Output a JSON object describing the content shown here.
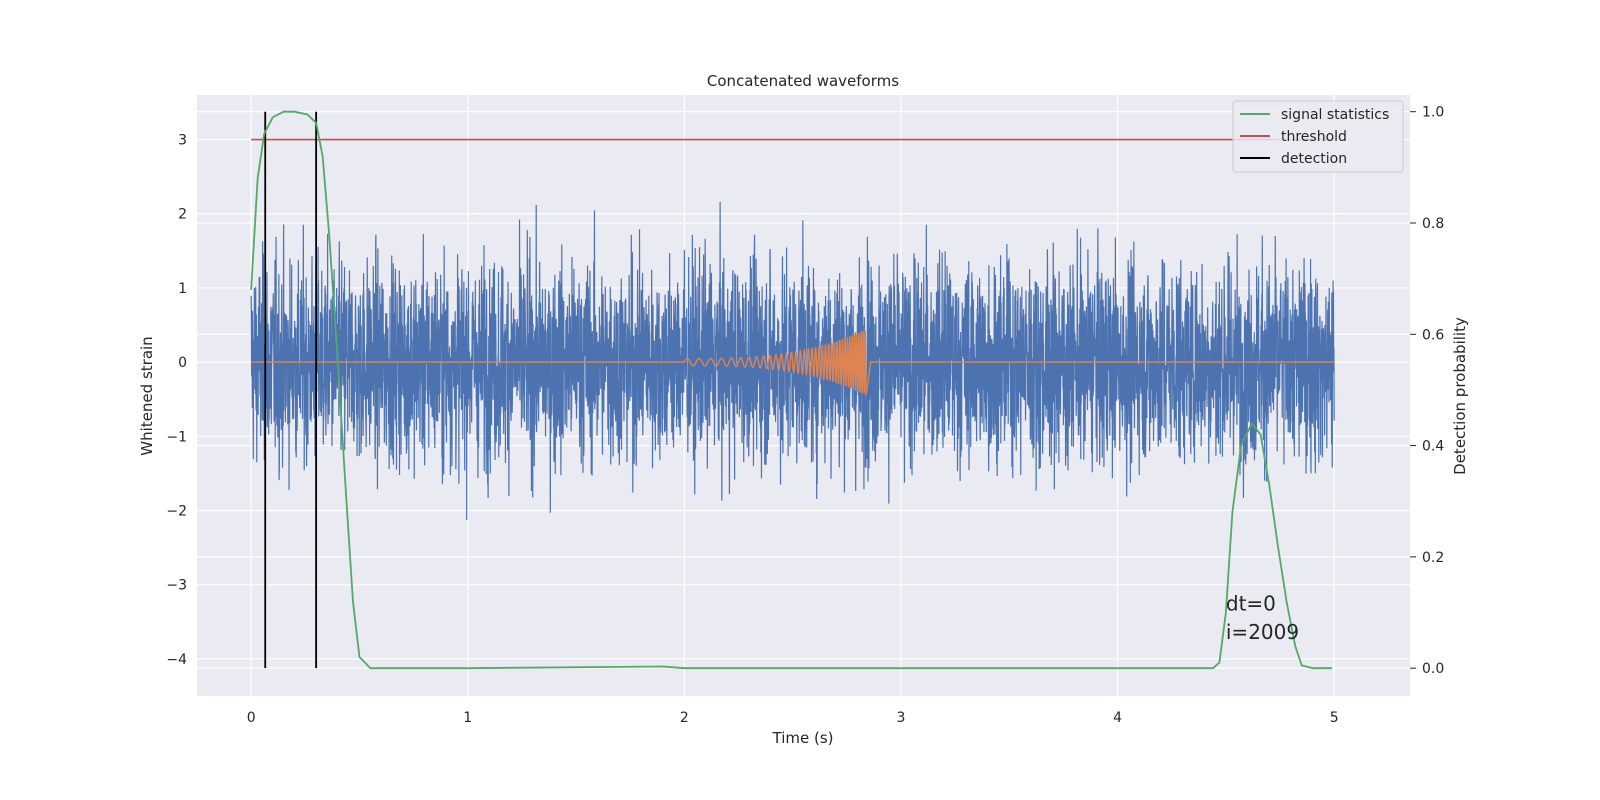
{
  "chart_data": {
    "type": "line",
    "title": "Concatenated waveforms",
    "xlabel": "Time (s)",
    "ylabel": "Whitened strain",
    "y2label": "Detection probability",
    "xlim": [
      -0.25,
      5.35
    ],
    "ylim": [
      -4.5,
      3.6
    ],
    "y2lim": [
      -0.05,
      1.03
    ],
    "x_ticks": [
      "0",
      "1",
      "2",
      "3",
      "4",
      "5"
    ],
    "y_ticks": [
      "3",
      "2",
      "1",
      "0",
      "−1",
      "−2",
      "−3",
      "−4"
    ],
    "y2_ticks": [
      "1.0",
      "0.8",
      "0.6",
      "0.4",
      "0.2",
      "0.0"
    ],
    "grid": true,
    "legend_position": "top-right",
    "legend": [
      {
        "label": "signal statistics",
        "color": "#55a868"
      },
      {
        "label": "threshold",
        "color": "#c44e52"
      },
      {
        "label": "detection",
        "color": "#000000"
      }
    ],
    "series": [
      {
        "name": "strain",
        "color": "#4c72b0",
        "x_range": [
          0,
          5
        ],
        "envelope_y": [
          -3.2,
          3.4
        ],
        "description_values": "noise"
      },
      {
        "name": "template",
        "color": "#dd8452",
        "x": [
          0,
          2.0,
          2.84,
          2.86,
          5.0
        ],
        "amplitude": [
          0,
          0.05,
          0.45,
          0,
          0
        ]
      },
      {
        "name": "signal statistics",
        "color": "#55a868",
        "x": [
          0,
          0.03,
          0.06,
          0.1,
          0.15,
          0.2,
          0.26,
          0.3,
          0.33,
          0.36,
          0.4,
          0.44,
          0.47,
          0.5,
          0.55,
          1.0,
          1.9,
          2.0,
          3.0,
          4.0,
          4.44,
          4.47,
          4.5,
          4.53,
          4.57,
          4.62,
          4.66,
          4.7,
          4.74,
          4.78,
          4.82,
          4.85,
          4.9,
          4.99
        ],
        "values": [
          0.68,
          0.88,
          0.96,
          0.99,
          1.0,
          1.0,
          0.995,
          0.98,
          0.92,
          0.78,
          0.55,
          0.3,
          0.12,
          0.02,
          0.0,
          0.0,
          0.003,
          0.0,
          0.0,
          0.0,
          0.0,
          0.01,
          0.1,
          0.28,
          0.4,
          0.44,
          0.42,
          0.33,
          0.22,
          0.12,
          0.04,
          0.005,
          0.0,
          0.0
        ]
      },
      {
        "name": "threshold",
        "color": "#c44e52",
        "x": [
          0,
          5
        ],
        "values": [
          0.95,
          0.95
        ]
      },
      {
        "name": "detection",
        "color": "#000000",
        "x": [
          0.065,
          0.3
        ],
        "values": [
          0,
          1.0
        ]
      }
    ],
    "annotations": [
      {
        "text": "dt=0",
        "x": 4.5,
        "y": -3.35
      },
      {
        "text": "i=2009",
        "x": 4.5,
        "y": -3.73
      }
    ]
  }
}
